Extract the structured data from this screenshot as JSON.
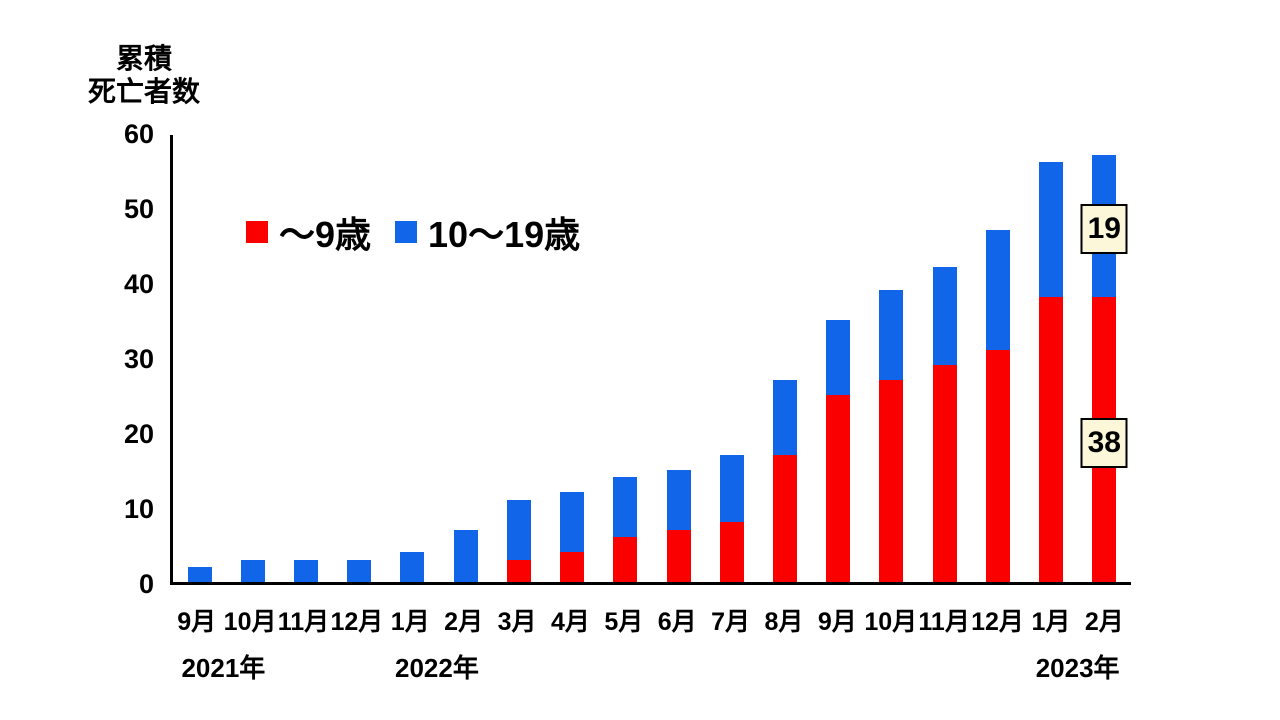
{
  "chart_data": {
    "type": "bar",
    "stacked": true,
    "title": "累積死亡者数",
    "ylabel_lines": [
      "累積",
      "死亡者数"
    ],
    "categories": [
      "9月",
      "10月",
      "11月",
      "12月",
      "1月",
      "2月",
      "3月",
      "4月",
      "5月",
      "6月",
      "7月",
      "8月",
      "9月",
      "10月",
      "11月",
      "12月",
      "1月",
      "2月"
    ],
    "series": [
      {
        "name": "〜9歳",
        "color": "#fb0000",
        "values": [
          0,
          0,
          0,
          0,
          0,
          0,
          3,
          4,
          6,
          7,
          8,
          17,
          25,
          27,
          29,
          31,
          38,
          38
        ]
      },
      {
        "name": "10〜19歳",
        "color": "#1065e8",
        "values": [
          2,
          3,
          3,
          3,
          4,
          7,
          8,
          8,
          8,
          8,
          9,
          10,
          10,
          12,
          13,
          16,
          18,
          19
        ]
      }
    ],
    "totals": [
      2,
      3,
      3,
      3,
      4,
      7,
      11,
      12,
      14,
      15,
      17,
      27,
      35,
      39,
      42,
      47,
      56,
      57
    ],
    "ylim": [
      0,
      60
    ],
    "yticks": [
      0,
      10,
      20,
      30,
      40,
      50,
      60
    ],
    "xlabel": "",
    "ylabel": "累積死亡者数",
    "year_labels": [
      {
        "text": "2021年",
        "index": 0
      },
      {
        "text": "2022年",
        "index": 4
      },
      {
        "text": "2023年",
        "index": 16
      }
    ],
    "annotations": [
      {
        "text": "19",
        "bar_index": 17,
        "series_index": 1
      },
      {
        "text": "38",
        "bar_index": 17,
        "series_index": 0
      }
    ],
    "annotation_bg": "#fbf7d8",
    "legend_position": "top-left-inside",
    "grid": false,
    "background": "#ffffff"
  }
}
